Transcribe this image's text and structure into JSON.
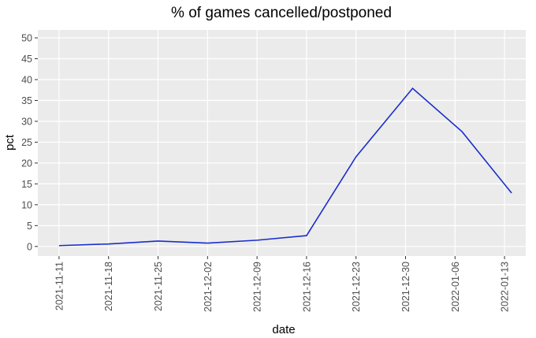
{
  "chart_data": {
    "type": "line",
    "title": "% of games cancelled/postponed",
    "x_label": "date",
    "y_label": "pct",
    "x": [
      "2021-11-11",
      "2021-11-18",
      "2021-11-25",
      "2021-12-02",
      "2021-12-09",
      "2021-12-16",
      "2021-12-23",
      "2021-12-31",
      "2022-01-07",
      "2022-01-14"
    ],
    "series": [
      {
        "name": "pct",
        "color": "#1a2ecc",
        "values": [
          0.2,
          0.6,
          1.3,
          0.8,
          1.5,
          2.6,
          21.5,
          37.9,
          27.5,
          12.8
        ]
      }
    ],
    "xlim": [
      "2021-11-08",
      "2022-01-16"
    ],
    "xticks": [
      "2021-11-11",
      "2021-11-18",
      "2021-11-25",
      "2021-12-02",
      "2021-12-09",
      "2021-12-16",
      "2021-12-23",
      "2021-12-30",
      "2022-01-06",
      "2022-01-13"
    ],
    "ylim": [
      -2.3,
      51.9
    ],
    "yticks": [
      0,
      5,
      10,
      15,
      20,
      25,
      30,
      35,
      40,
      45,
      50
    ],
    "grid": true
  }
}
